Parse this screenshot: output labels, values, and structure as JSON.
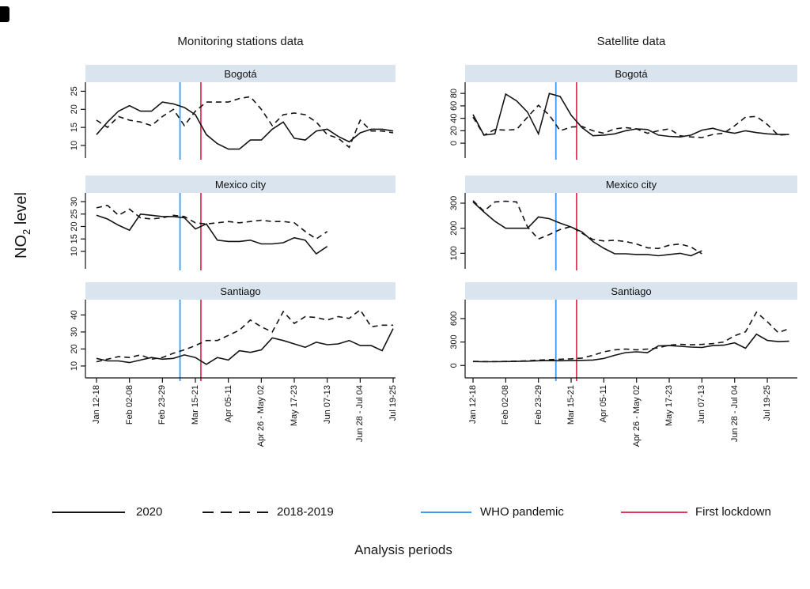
{
  "figure": {
    "column_titles": [
      "Monitoring stations data",
      "Satellite data"
    ],
    "ylabel_main": "NO",
    "ylabel_sub": "2",
    "ylabel_rest": " level",
    "xlabel": "Analysis periods",
    "legend": [
      {
        "label": "2020",
        "line_style": "solid",
        "color": "#141414"
      },
      {
        "label": "2018-2019",
        "line_style": "dashed",
        "color": "#141414"
      },
      {
        "label": "WHO pandemic",
        "line_style": "solid",
        "color": "#3d9bef"
      },
      {
        "label": "First lockdown",
        "line_style": "solid",
        "color": "#e4355c"
      }
    ],
    "x_axis": {
      "tick_positions": [
        1,
        4,
        7,
        10,
        13,
        16,
        19,
        22,
        25,
        28
      ],
      "tick_labels": [
        "Jan 12-18",
        "Feb 02-08",
        "Feb 23-29",
        "Mar 15-21",
        "Apr 05-11",
        "Apr 26 - May 02",
        "May 17-23",
        "Jun 07-13",
        "Jun 28 - Jul 04",
        "Jul 19-25"
      ]
    },
    "colors": {
      "series": "#141414",
      "strip_background": "#d9e4ee",
      "who_pandemic_line": "#3d9bef",
      "first_lockdown_line": "#e4355c"
    }
  },
  "chart_data": [
    {
      "id": "monitoring-bogota",
      "type": "line",
      "column": 0,
      "row": 0,
      "title": "Bogotá",
      "yticks": [
        10,
        15,
        20,
        25
      ],
      "ylim": [
        6.5,
        27.5
      ],
      "vlines": [
        {
          "name": "WHO pandemic",
          "x": 8.6,
          "color": "#3d9bef"
        },
        {
          "name": "First lockdown",
          "x": 10.5,
          "color": "#e4355c"
        }
      ],
      "series": [
        {
          "name": "2020",
          "style": "solid",
          "values": [
            13,
            16.5,
            19.5,
            21,
            19.5,
            19.5,
            22,
            21.5,
            20.5,
            18.5,
            13,
            10.5,
            9,
            9,
            11.5,
            11.5,
            14.5,
            16.5,
            12,
            11.5,
            14,
            14.5,
            12.5,
            11,
            13.5,
            14.5,
            14.5,
            14
          ]
        },
        {
          "name": "2018-2019",
          "style": "dashed",
          "values": [
            17,
            15,
            18,
            17,
            16.5,
            15.5,
            18,
            20,
            15.5,
            19.5,
            22,
            22,
            22,
            23,
            23.5,
            20,
            15.5,
            18.5,
            19,
            18.5,
            16.5,
            13,
            12,
            9.5,
            17,
            14,
            14,
            13.5
          ]
        }
      ]
    },
    {
      "id": "monitoring-mexico-city",
      "type": "line",
      "column": 0,
      "row": 1,
      "title": "Mexico city",
      "yticks": [
        10,
        15,
        20,
        25,
        30
      ],
      "ylim": [
        3,
        33.5
      ],
      "vlines": [
        {
          "name": "WHO pandemic",
          "x": 8.6,
          "color": "#3d9bef"
        },
        {
          "name": "First lockdown",
          "x": 10.5,
          "color": "#e4355c"
        }
      ],
      "series": [
        {
          "name": "2020",
          "style": "solid",
          "values": [
            24.5,
            23,
            20.5,
            18.5,
            25,
            24.5,
            24,
            24,
            23.5,
            19,
            21,
            14.5,
            14,
            14,
            14.5,
            13,
            13,
            13.5,
            15.5,
            14.5,
            9,
            12
          ]
        },
        {
          "name": "2018-2019",
          "style": "dashed",
          "values": [
            27.5,
            28.5,
            24.5,
            27,
            23.5,
            23,
            23.5,
            24.5,
            24,
            21.5,
            21,
            21.5,
            22,
            21.5,
            22,
            22.5,
            22,
            22,
            21.5,
            18,
            15,
            18
          ]
        }
      ]
    },
    {
      "id": "monitoring-santiago",
      "type": "line",
      "column": 0,
      "row": 2,
      "title": "Santiago",
      "yticks": [
        10,
        20,
        30,
        40
      ],
      "ylim": [
        3,
        49
      ],
      "vlines": [
        {
          "name": "WHO pandemic",
          "x": 8.6,
          "color": "#3d9bef"
        },
        {
          "name": "First lockdown",
          "x": 10.5,
          "color": "#e4355c"
        }
      ],
      "series": [
        {
          "name": "2020",
          "style": "solid",
          "values": [
            14.5,
            13,
            13,
            12,
            13.5,
            15,
            14,
            14.5,
            16.5,
            15,
            11,
            15,
            13.5,
            19,
            18,
            19.5,
            26.5,
            25,
            23,
            21,
            24,
            22.5,
            23,
            25,
            22,
            22,
            19,
            32
          ]
        },
        {
          "name": "2018-2019",
          "style": "dashed",
          "values": [
            12.5,
            14,
            15.5,
            15,
            16.5,
            14,
            15,
            17.5,
            19.5,
            22,
            25,
            25,
            28,
            31,
            37,
            33,
            30,
            42,
            35,
            39,
            38.5,
            37,
            39,
            38,
            43,
            33,
            34,
            34
          ]
        }
      ]
    },
    {
      "id": "satellite-bogota",
      "type": "line",
      "column": 1,
      "row": 0,
      "title": "Bogotá",
      "yticks": [
        0,
        20,
        40,
        60,
        80
      ],
      "ylim": [
        -24,
        98
      ],
      "vlines": [
        {
          "name": "WHO pandemic",
          "x": 8.6,
          "color": "#3d9bef"
        },
        {
          "name": "First lockdown",
          "x": 10.5,
          "color": "#e4355c"
        }
      ],
      "series": [
        {
          "name": "2020",
          "style": "solid",
          "values": [
            46,
            13,
            15,
            79,
            68,
            50,
            15,
            80,
            75,
            45,
            25,
            12,
            13,
            15,
            20,
            23,
            22,
            13,
            11,
            10,
            13,
            21,
            24,
            19,
            16,
            20,
            17,
            15,
            14,
            14
          ]
        },
        {
          "name": "2018-2019",
          "style": "dashed",
          "values": [
            42,
            13,
            22,
            21,
            22,
            42,
            61,
            45,
            20,
            26,
            27,
            20,
            16,
            23,
            25,
            23,
            16,
            20,
            23,
            12,
            10,
            9,
            14,
            16,
            28,
            42,
            43,
            30,
            13,
            14
          ]
        }
      ]
    },
    {
      "id": "satellite-mexico-city",
      "type": "line",
      "column": 1,
      "row": 1,
      "title": "Mexico city",
      "yticks": [
        100,
        200,
        300
      ],
      "ylim": [
        38,
        341
      ],
      "vlines": [
        {
          "name": "WHO pandemic",
          "x": 8.6,
          "color": "#3d9bef"
        },
        {
          "name": "First lockdown",
          "x": 10.5,
          "color": "#e4355c"
        }
      ],
      "series": [
        {
          "name": "2020",
          "style": "solid",
          "values": [
            305,
            265,
            228,
            200,
            200,
            200,
            245,
            238,
            220,
            205,
            185,
            147,
            120,
            98,
            98,
            95,
            95,
            90,
            95,
            100,
            90,
            110
          ]
        },
        {
          "name": "2018-2019",
          "style": "dashed",
          "values": [
            310,
            268,
            305,
            308,
            305,
            205,
            157,
            175,
            195,
            207,
            180,
            155,
            149,
            152,
            147,
            137,
            122,
            119,
            132,
            137,
            125,
            98
          ]
        }
      ]
    },
    {
      "id": "satellite-santiago",
      "type": "line",
      "column": 1,
      "row": 2,
      "title": "Santiago",
      "yticks": [
        0,
        300,
        600
      ],
      "ylim": [
        -159,
        842
      ],
      "vlines": [
        {
          "name": "WHO pandemic",
          "x": 8.6,
          "color": "#3d9bef"
        },
        {
          "name": "First lockdown",
          "x": 10.5,
          "color": "#e4355c"
        }
      ],
      "series": [
        {
          "name": "2020",
          "style": "solid",
          "values": [
            50,
            48,
            48,
            50,
            52,
            55,
            60,
            62,
            60,
            62,
            65,
            70,
            90,
            130,
            165,
            175,
            165,
            250,
            255,
            245,
            235,
            230,
            255,
            260,
            290,
            220,
            400,
            320,
            305,
            310
          ]
        },
        {
          "name": "2018-2019",
          "style": "dashed",
          "values": [
            52,
            50,
            50,
            52,
            55,
            60,
            68,
            75,
            80,
            85,
            95,
            130,
            175,
            200,
            210,
            200,
            210,
            225,
            260,
            270,
            265,
            270,
            280,
            300,
            380,
            430,
            680,
            560,
            420,
            470
          ]
        }
      ]
    }
  ]
}
